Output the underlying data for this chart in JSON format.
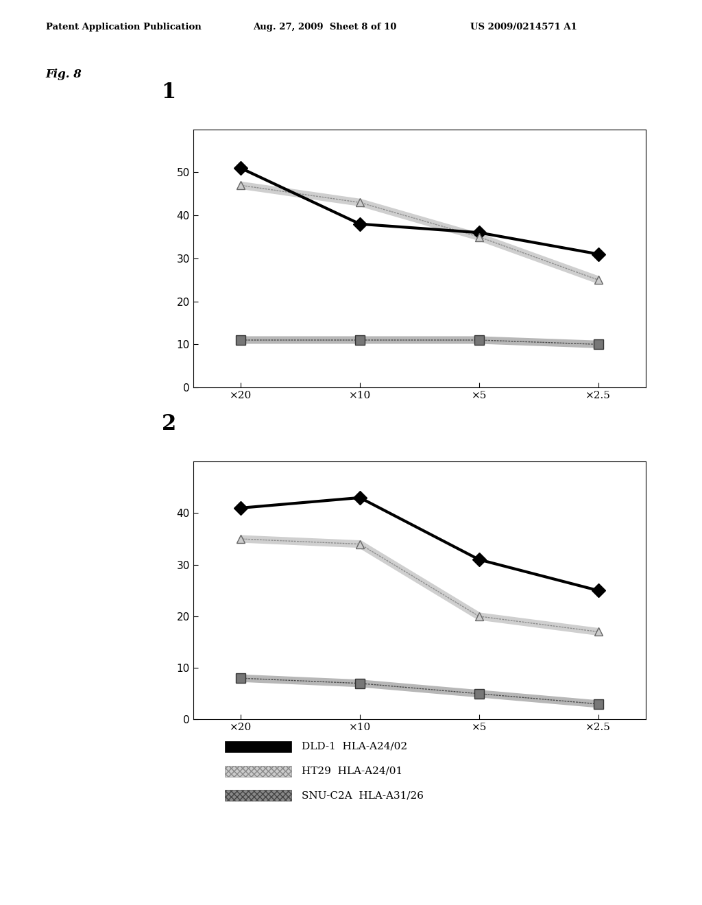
{
  "x_labels": [
    "×20",
    "×10",
    "×5",
    "×2.5"
  ],
  "x_values": [
    0,
    1,
    2,
    3
  ],
  "chart1": {
    "title": "1",
    "ylim": [
      0,
      60
    ],
    "yticks": [
      0,
      10,
      20,
      30,
      40,
      50
    ],
    "series": [
      {
        "label": "DLD-1  HLA-A24/02",
        "values": [
          51,
          38,
          36,
          31
        ],
        "color": "#000000",
        "marker": "D",
        "linewidth": 3.0,
        "markersize": 10,
        "style": "solid"
      },
      {
        "label": "HT29  HLA-A24/01",
        "values": [
          47,
          43,
          35,
          25
        ],
        "color": "#999999",
        "marker": "^",
        "linewidth": 2.0,
        "markersize": 9,
        "style": "hatch_light"
      },
      {
        "label": "SNU-C2A  HLA-A31/26",
        "values": [
          11,
          11,
          11,
          10
        ],
        "color": "#666666",
        "marker": "s",
        "linewidth": 2.0,
        "markersize": 10,
        "style": "hatch_dark"
      }
    ]
  },
  "chart2": {
    "title": "2",
    "ylim": [
      0,
      50
    ],
    "yticks": [
      0,
      10,
      20,
      30,
      40
    ],
    "series": [
      {
        "label": "DLD-1  HLA-A24/02",
        "values": [
          41,
          43,
          31,
          25
        ],
        "color": "#000000",
        "marker": "D",
        "linewidth": 3.0,
        "markersize": 10,
        "style": "solid"
      },
      {
        "label": "HT29  HLA-A24/01",
        "values": [
          35,
          34,
          20,
          17
        ],
        "color": "#999999",
        "marker": "^",
        "linewidth": 2.0,
        "markersize": 9,
        "style": "hatch_light"
      },
      {
        "label": "SNU-C2A  HLA-A31/26",
        "values": [
          8,
          7,
          5,
          3
        ],
        "color": "#666666",
        "marker": "s",
        "linewidth": 2.0,
        "markersize": 10,
        "style": "hatch_dark"
      }
    ]
  },
  "legend_labels": [
    "DLD-1  HLA-A24/02",
    "HT29  HLA-A24/01",
    "SNU-C2A  HLA-A31/26"
  ],
  "header_left": "Patent Application Publication",
  "header_mid": "Aug. 27, 2009  Sheet 8 of 10",
  "header_right": "US 2009/0214571 A1",
  "fig_label": "Fig. 8",
  "background_color": "#ffffff"
}
